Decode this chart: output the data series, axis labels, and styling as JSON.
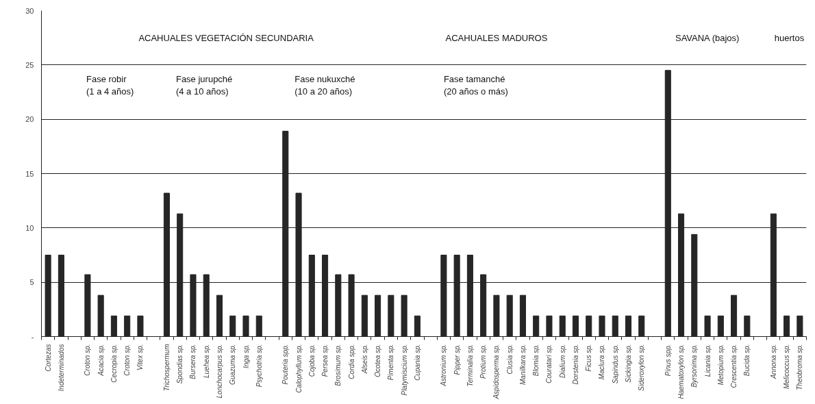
{
  "chart_data": {
    "type": "bar",
    "categories": [
      "Cortezas",
      "Indeterminados",
      null,
      "Croton sp.",
      "Acacia sp.",
      "Cecropia sp.",
      "Croton sp.",
      "Vitex sp.",
      null,
      "Trichospermum",
      "Spondias sp.",
      "Bursera sp.",
      "Luehea sp.",
      "Lonchocarpus sp.",
      "Guazuma sp.",
      "Inga sp.",
      "Psychotria sp.",
      null,
      "Pouteria spp.",
      "Calophyllum sp.",
      "Cojoba sp.",
      "Persea sp.",
      "Brosimum sp.",
      "Cordia spp.",
      "Alseis sp.",
      "Ocotea sp.",
      "Pimenta sp.",
      "Platymiscium sp.",
      "Cupania sp.",
      null,
      "Astronium sp.",
      "Pipper sp.",
      "Terminalia sp.",
      "Protium sp.",
      "Aspidosperma sp.",
      "Clusia sp.",
      "Manilkara sp.",
      "Blomia sp.",
      "Couratari sp.",
      "Dialium sp.",
      "Dorstenia sp.",
      "Ficus sp.",
      "Maclura sp.",
      "Sapindus sp.",
      "Sickingia sp.",
      "Sideroxylon sp.",
      null,
      "Pinus spp.",
      "Haematoxylon sp.",
      "Byrsonima sp.",
      "Licania sp.",
      "Metopium sp.",
      "Crescentia sp.",
      "Bucida sp.",
      null,
      "Annona sp.",
      "Melicoccus sp.",
      "Theobroma sp."
    ],
    "values": [
      7.5,
      7.5,
      null,
      5.7,
      3.8,
      1.9,
      1.9,
      1.9,
      null,
      13.2,
      11.3,
      5.7,
      5.7,
      3.8,
      1.9,
      1.9,
      1.9,
      null,
      18.9,
      13.2,
      7.5,
      7.5,
      5.7,
      5.7,
      3.8,
      3.8,
      3.8,
      3.8,
      1.9,
      null,
      7.5,
      7.5,
      7.5,
      5.7,
      3.8,
      3.8,
      3.8,
      1.9,
      1.9,
      1.9,
      1.9,
      1.9,
      1.9,
      1.9,
      1.9,
      1.9,
      null,
      24.5,
      11.3,
      9.4,
      1.9,
      1.9,
      3.8,
      1.9,
      null,
      11.3,
      1.9,
      1.9
    ],
    "color": "#262626",
    "ylim": [
      0,
      30
    ],
    "yticks": [
      {
        "value": 0,
        "label": "-"
      },
      5,
      10,
      15,
      20,
      25,
      30
    ],
    "grid": "y",
    "annotations": [
      "ACAHUALES VEGETACIÓN SECUNDARIA",
      "ACAHUALES MADUROS",
      "SAVANA (bajos)",
      "huertos",
      "Fase robir\n(1 a 4 años)",
      "Fase jurupché\n(4 a 10 años)",
      "Fase nukuxché\n(10 a 20 años)",
      "Fase tamanché\n(20 años o más)"
    ]
  }
}
